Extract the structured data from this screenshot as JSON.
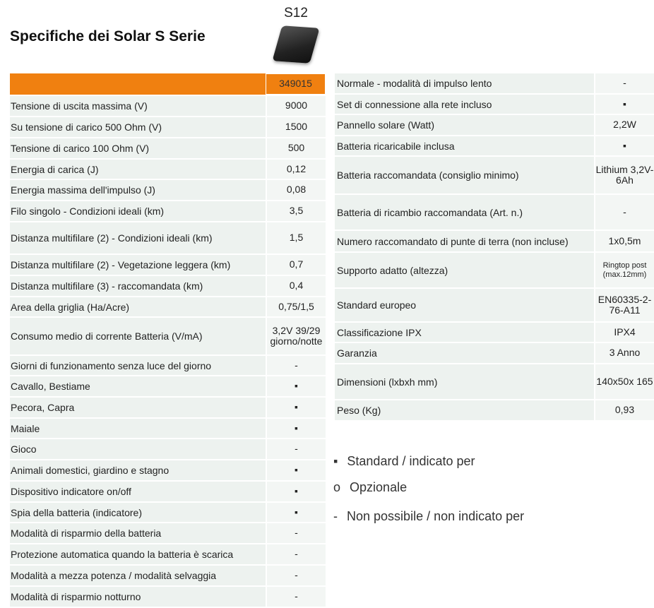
{
  "title": "Specifiche dei Solar S Serie",
  "model": "S12",
  "accent": "#f08010",
  "left_table": {
    "article": "349015",
    "rows": [
      {
        "label": "Tensione di uscita massima (V)",
        "value": "9000",
        "h": 28
      },
      {
        "label": "Su tensione di carico 500 Ohm (V)",
        "value": "1500",
        "h": 28
      },
      {
        "label": "Tensione di carico 100 Ohm (V)",
        "value": "500",
        "h": 28
      },
      {
        "label": "Energia di carica (J)",
        "value": "0,12",
        "h": 27
      },
      {
        "label": "Energia massima dell'impulso (J)",
        "value": "0,08",
        "h": 28
      },
      {
        "label": "Filo singolo - Condizioni ideali (km)",
        "value": "3,5",
        "h": 28
      },
      {
        "label": "Distanza multifilare (2) - Condizioni ideali (km)",
        "value": "1,5",
        "h": 44
      },
      {
        "label": "Distanza multifilare (2) - Vegetazione leggera (km)",
        "value": "0,7",
        "h": 28
      },
      {
        "label": "Distanza multifilare (3) - raccomandata (km)",
        "value": "0,4",
        "h": 28
      },
      {
        "label": "Area della griglia (Ha/Acre)",
        "value": "0,75/1,5",
        "h": 27
      },
      {
        "label": "Consumo medio di corrente Batteria (V/mA)",
        "value": "3,2V 39/29 giorno/notte",
        "h": 52
      },
      {
        "label": "Giorni di funzionamento senza luce del giorno",
        "value": "-",
        "h": 27
      },
      {
        "label": "Cavallo, Bestiame",
        "value": "▪",
        "h": 28
      },
      {
        "label": "Pecora, Capra",
        "value": "▪",
        "h": 28
      },
      {
        "label": "Maiale",
        "value": "▪",
        "h": 27
      },
      {
        "label": "Gioco",
        "value": "-",
        "h": 28
      },
      {
        "label": "Animali domestici, giardino e stagno",
        "value": "▪",
        "h": 28
      },
      {
        "label": "Dispositivo indicatore on/off",
        "value": "▪",
        "h": 28
      },
      {
        "label": "Spia della batteria (indicatore)",
        "value": "▪",
        "h": 27
      },
      {
        "label": "Modalità di risparmio della batteria",
        "value": "-",
        "h": 28
      },
      {
        "label": "Protezione automatica quando la batteria è scarica",
        "value": "-",
        "h": 28
      },
      {
        "label": "Modalità a mezza potenza / modalità selvaggia",
        "value": "-",
        "h": 28
      },
      {
        "label": "Modalità di risparmio notturno",
        "value": "-",
        "h": 28
      }
    ]
  },
  "right_table": {
    "rows": [
      {
        "label": "Normale - modalità di impulso lento",
        "value": "-",
        "h": 28
      },
      {
        "label": "Set di connessione alla rete incluso",
        "value": "▪",
        "h": 27
      },
      {
        "label": "Pannello solare (Watt)",
        "value": "2,2W",
        "h": 28
      },
      {
        "label": "Batteria ricaricabile inclusa",
        "value": "▪",
        "h": 27
      },
      {
        "label": "Batteria raccomandata (consiglio minimo)",
        "value": "Lithium 3,2V-6Ah",
        "h": 52
      },
      {
        "label": "Batteria di ricambio raccomandata (Art. n.)",
        "value": "-",
        "h": 49
      },
      {
        "label": "Numero raccomandato di punte di terra (non incluse)",
        "value": "1x0,5m",
        "h": 29
      },
      {
        "label": "Supporto adatto (altezza)",
        "value": "Ringtop post (max.12mm)",
        "h": 49,
        "small": true
      },
      {
        "label": "Standard europeo",
        "value": "EN60335-2-76-A11",
        "h": 46
      },
      {
        "label": "Classificazione IPX",
        "value": "IPX4",
        "h": 27
      },
      {
        "label": "Garanzia",
        "value": "3 Anno",
        "h": 28
      },
      {
        "label": "Dimensioni (lxbxh mm)",
        "value": "140x50x 165",
        "h": 49
      },
      {
        "label": "Peso (Kg)",
        "value": "0,93",
        "h": 28
      }
    ]
  },
  "legend": [
    {
      "symbol": "▪",
      "text": "Standard / indicato per"
    },
    {
      "symbol": "o",
      "text": "Opzionale"
    },
    {
      "symbol": "-",
      "text": "Non possibile / non indicato per"
    }
  ]
}
